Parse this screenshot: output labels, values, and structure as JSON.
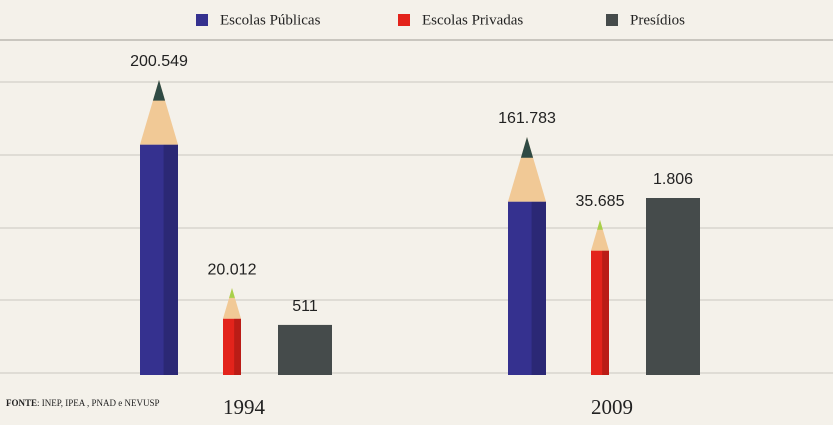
{
  "chart_data": {
    "type": "bar",
    "categories": [
      "1994",
      "2009"
    ],
    "series": [
      {
        "name": "Escolas Públicas",
        "color": "#35318f",
        "values": [
          200549,
          161783
        ],
        "value_labels": [
          "200.549",
          "161.783"
        ]
      },
      {
        "name": "Escolas Privadas",
        "color": "#e3231b",
        "values": [
          20012,
          35685
        ],
        "value_labels": [
          "20.012",
          "35.685"
        ]
      },
      {
        "name": "Presídios",
        "color": "#454b4b",
        "values": [
          511,
          1806
        ],
        "value_labels": [
          "511",
          "1.806"
        ]
      }
    ],
    "grid": true,
    "source_label": "FONTE",
    "source_text": ": INEP, IPEA , PNAD e NEVUSP"
  }
}
